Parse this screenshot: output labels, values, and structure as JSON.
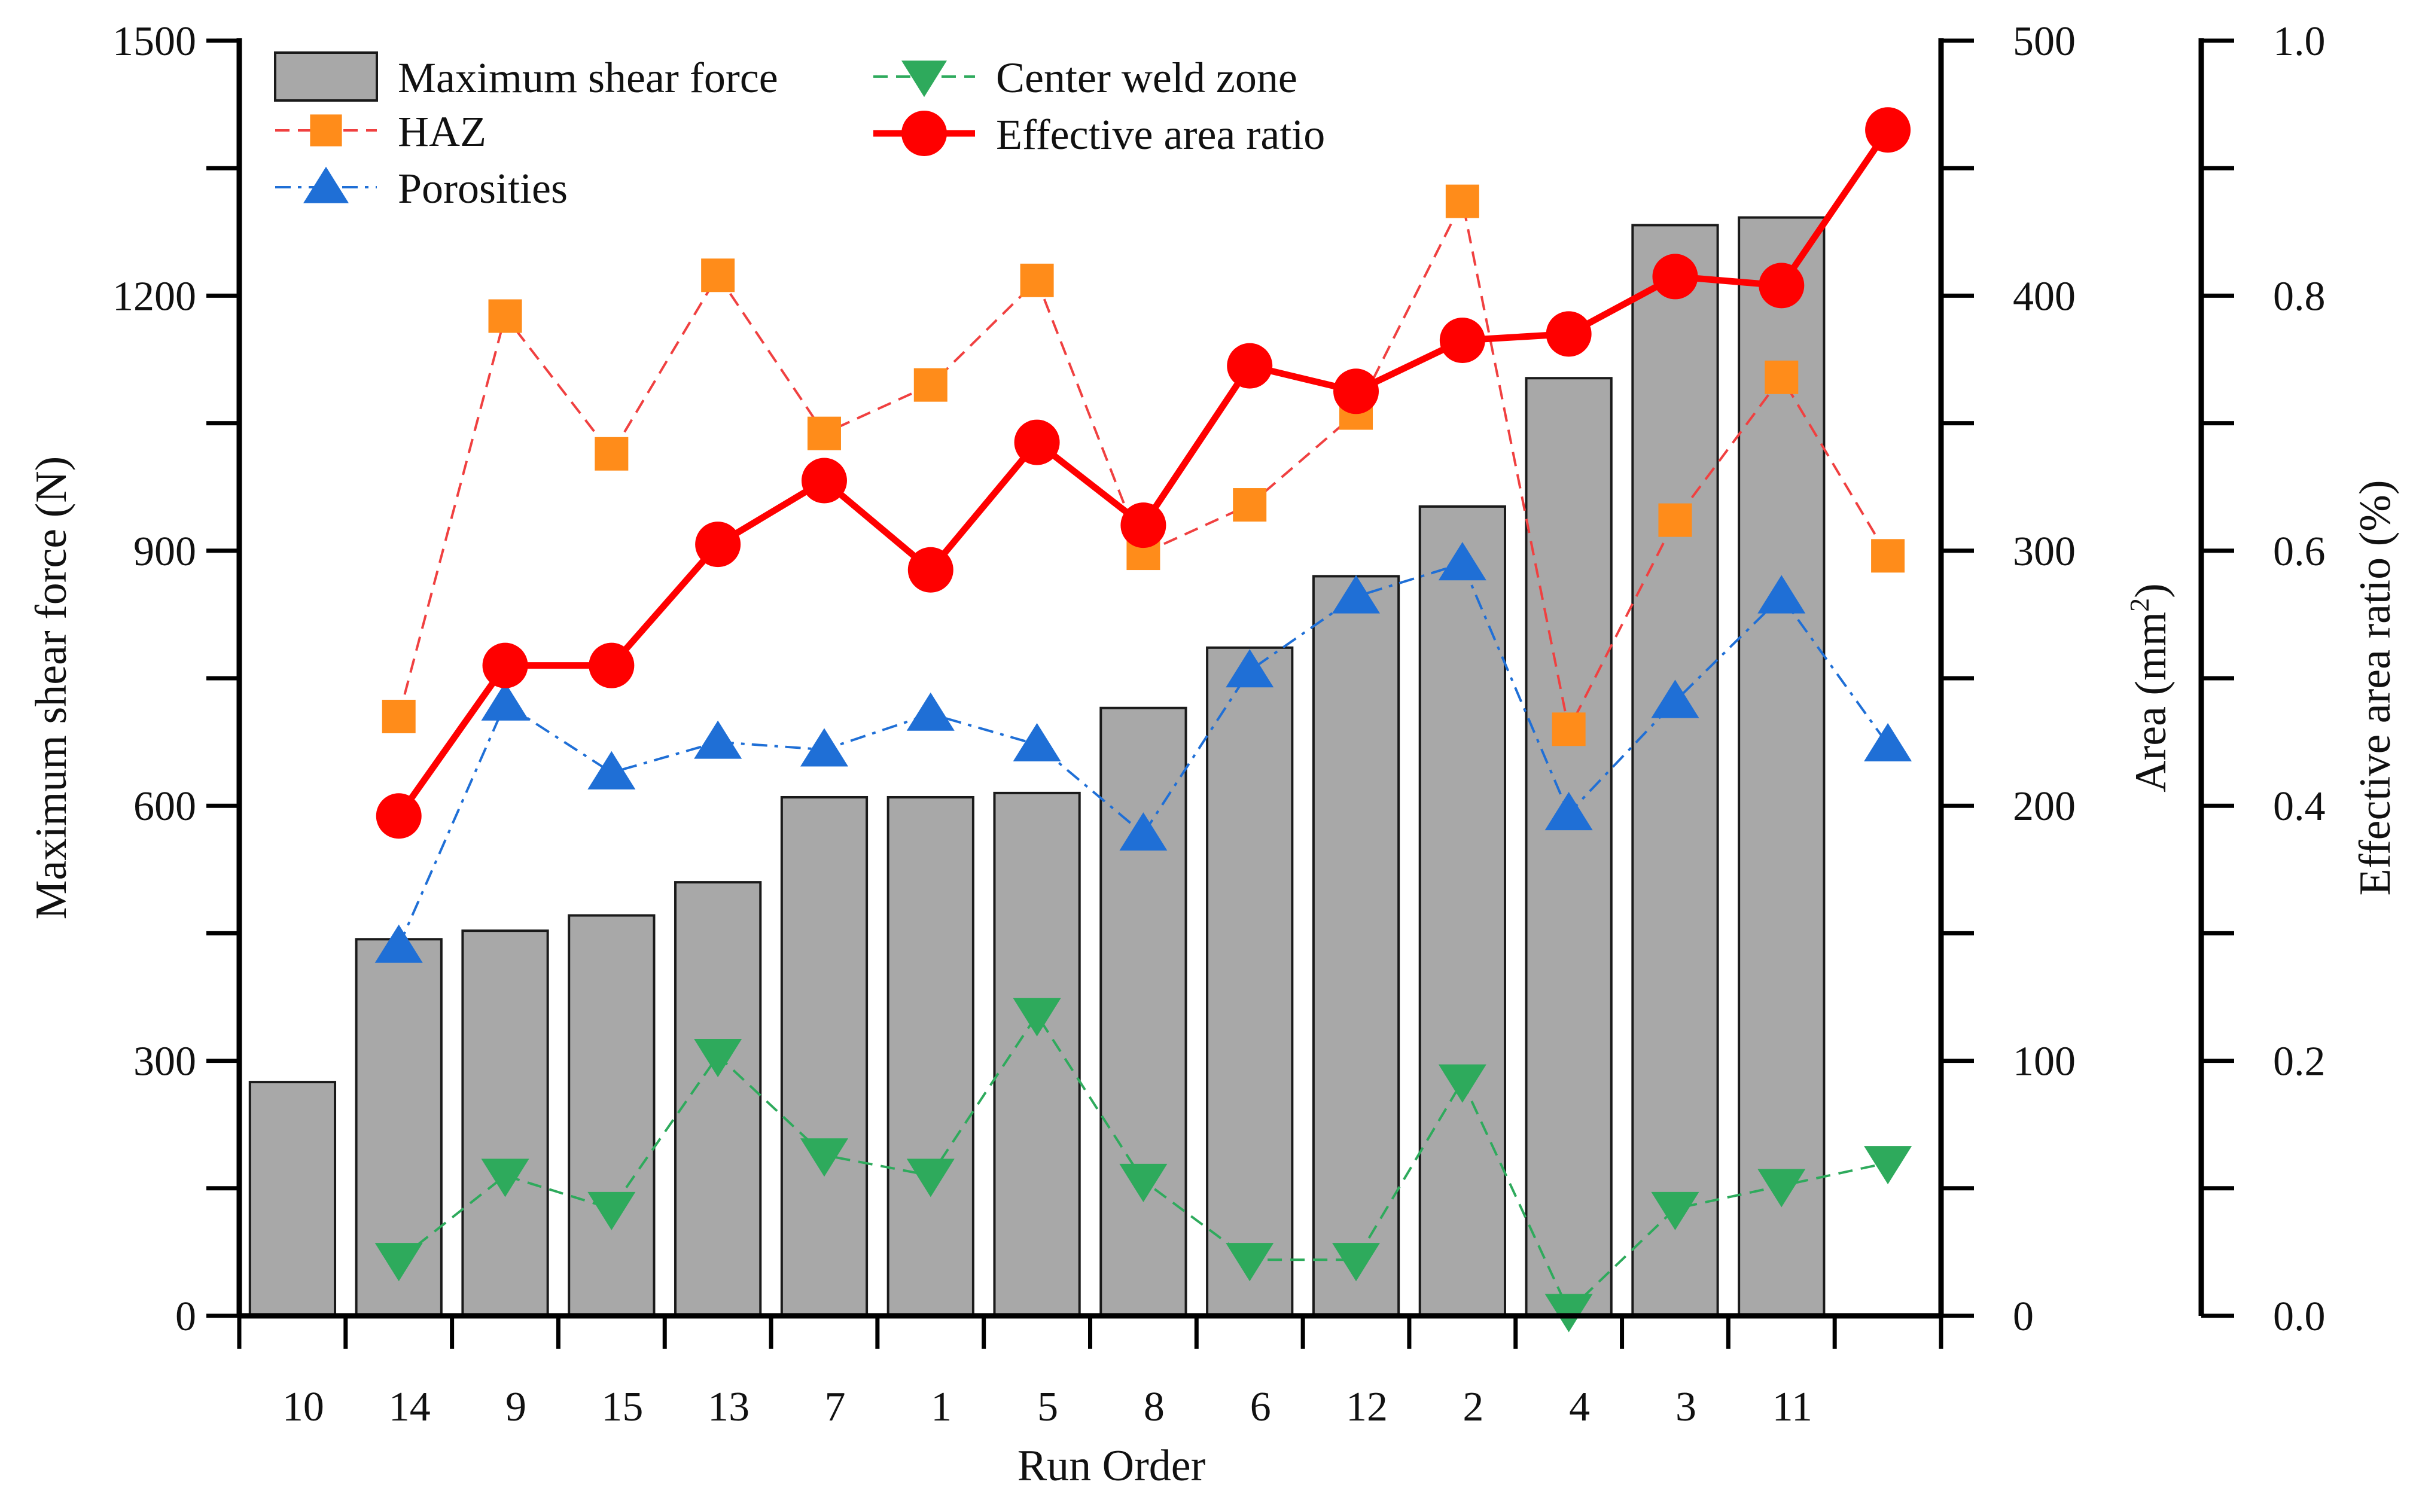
{
  "chart_data": {
    "type": "bar+line",
    "title": "",
    "xlabel": "Run Order",
    "ylabel_left": "Maximum shear force (N)",
    "ylabel_area": "Area (mm",
    "ylabel_area_sup": "2",
    "ylabel_area_end": ")",
    "ylabel_ratio": "Effective area ratio (%)",
    "categories": [
      "10",
      "14",
      "9",
      "15",
      "13",
      "7",
      "1",
      "5",
      "8",
      "6",
      "12",
      "2",
      "4",
      "3",
      "11"
    ],
    "axes": {
      "left": {
        "min": 0,
        "max": 1500,
        "ticks": [
          0,
          300,
          600,
          900,
          1200,
          1500
        ],
        "tick_labels": [
          "0",
          "300",
          "600",
          "900",
          "1200",
          "1500"
        ]
      },
      "area": {
        "min": 0,
        "max": 500,
        "ticks": [
          0,
          100,
          200,
          300,
          400,
          500
        ],
        "tick_labels": [
          "0",
          "100",
          "200",
          "300",
          "400",
          "500"
        ]
      },
      "ratio": {
        "min": 0,
        "max": 1.0,
        "ticks": [
          0,
          0.2,
          0.4,
          0.6,
          0.8,
          1.0
        ],
        "tick_labels": [
          "0.0",
          "0.2",
          "0.4",
          "0.6",
          "0.8",
          "1.0"
        ]
      }
    },
    "bars": {
      "name": "Maximum shear force",
      "axis": "left",
      "color": "#a8a8a8",
      "values": [
        275,
        443,
        453,
        471,
        510,
        610,
        610,
        615,
        715,
        786,
        870,
        952,
        1103,
        1283,
        1292
      ]
    },
    "lines": [
      {
        "name": "HAZ",
        "axis": "area",
        "marker": "square",
        "color": "#ff8c1a",
        "line_color": "#f04040",
        "style": "dashed",
        "x_offset": 1,
        "values": [
          235,
          392,
          338,
          408,
          346,
          365,
          406,
          299,
          318,
          354,
          437,
          230,
          312,
          368,
          298
        ]
      },
      {
        "name": "Porosities",
        "axis": "area",
        "marker": "triangle-up",
        "color": "#1f6fd6",
        "line_color": "#1f6fd6",
        "style": "dashdot",
        "x_offset": 1,
        "values": [
          145,
          240,
          213,
          225,
          222,
          236,
          224,
          189,
          253,
          282,
          295,
          197,
          241,
          282,
          224
        ]
      },
      {
        "name": "Center weld zone",
        "axis": "area",
        "marker": "triangle-down",
        "color": "#2eaa5c",
        "line_color": "#2eaa5c",
        "style": "dashed",
        "x_offset": 1,
        "values": [
          22,
          55,
          42,
          102,
          63,
          55,
          118,
          53,
          22,
          22,
          92,
          2,
          42,
          51,
          60
        ]
      },
      {
        "name": "Effective area ratio",
        "axis": "ratio",
        "marker": "circle",
        "color": "#ff0000",
        "line_color": "#ff0000",
        "style": "solid",
        "x_offset": 1,
        "values": [
          0.392,
          0.51,
          0.51,
          0.605,
          0.655,
          0.585,
          0.685,
          0.62,
          0.745,
          0.725,
          0.765,
          0.77,
          0.815,
          0.808,
          0.93
        ]
      }
    ],
    "legend": {
      "placement": "top-left",
      "items": [
        "Maximum shear force",
        "HAZ",
        "Porosities",
        "Center weld zone",
        "Effective area ratio"
      ]
    },
    "grid": false
  }
}
